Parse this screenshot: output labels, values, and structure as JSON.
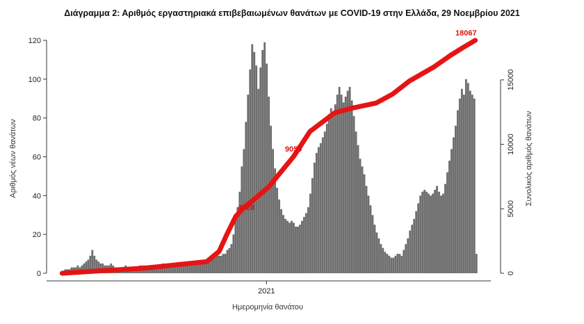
{
  "chart_data": {
    "type": "bar",
    "title": "Διάγραμμα 2: Αριθμός εργαστηριακά επιβεβαιωμένων θανάτων με COVID-19 στην Ελλάδα, 29 Νοεμβρίου 2021",
    "xlabel": "Ημερομηνία θανάτου",
    "ylabel_left": "Αριθμός νέων θανάτων",
    "ylabel_right": "Συνολικός αριθμός θανάτων",
    "x_tick_labels": [
      "2021"
    ],
    "y_left_ticks": [
      0,
      20,
      40,
      60,
      80,
      100,
      120
    ],
    "y_left_lim": [
      0,
      120
    ],
    "y_right_ticks": [
      0,
      5000,
      10000,
      15000
    ],
    "y_right_lim": [
      0,
      18067
    ],
    "grid": false,
    "bar_color": "#6e6e6e",
    "line_color": "#e61414",
    "series": [
      {
        "kind": "bar",
        "axis": "left",
        "values": [
          2,
          2,
          2,
          3,
          3,
          3,
          4,
          3,
          4,
          5,
          6,
          7,
          9,
          12,
          9,
          7,
          6,
          5,
          5,
          4,
          4,
          4,
          5,
          4,
          3,
          3,
          3,
          3,
          3,
          4,
          3,
          3,
          3,
          3,
          3,
          3,
          4,
          4,
          4,
          4,
          4,
          4,
          4,
          4,
          4,
          4,
          4,
          5,
          5,
          5,
          5,
          4,
          5,
          5,
          5,
          5,
          5,
          5,
          5,
          5,
          5,
          6,
          6,
          6,
          6,
          6,
          7,
          6,
          7,
          7,
          7,
          8,
          8,
          9,
          9,
          9,
          10,
          10,
          12,
          13,
          15,
          20,
          28,
          34,
          42,
          55,
          64,
          78,
          92,
          105,
          118,
          114,
          107,
          95,
          106,
          115,
          119,
          108,
          91,
          76,
          64,
          54,
          44,
          38,
          33,
          30,
          28,
          27,
          26,
          27,
          26,
          24,
          24,
          25,
          27,
          29,
          31,
          34,
          41,
          49,
          57,
          62,
          65,
          67,
          70,
          73,
          77,
          82,
          85,
          82,
          87,
          92,
          96,
          92,
          88,
          91,
          94,
          96,
          89,
          81,
          73,
          66,
          59,
          55,
          51,
          45,
          40,
          35,
          30,
          25,
          21,
          18,
          15,
          13,
          11,
          10,
          9,
          8,
          8,
          9,
          10,
          10,
          9,
          12,
          15,
          18,
          22,
          25,
          28,
          32,
          36,
          40,
          42,
          43,
          42,
          41,
          40,
          41,
          43,
          45,
          42,
          40,
          41,
          46,
          52,
          58,
          64,
          70,
          76,
          84,
          90,
          95,
          92,
          100,
          98,
          94,
          92,
          90,
          10
        ],
        "x_start_fraction": 0.04,
        "x_end_fraction": 0.97
      },
      {
        "kind": "line",
        "axis": "right",
        "x": [
          0,
          0.05,
          0.2,
          0.35,
          0.38,
          0.4,
          0.42,
          0.44,
          0.46,
          0.5,
          0.56,
          0.6,
          0.66,
          0.7,
          0.76,
          0.8,
          0.84,
          0.9,
          0.94,
          0.97,
          1.0
        ],
        "y": [
          0,
          100,
          400,
          900,
          1700,
          3100,
          4400,
          5100,
          5600,
          6700,
          9050,
          11000,
          12450,
          12800,
          13200,
          13900,
          14900,
          16000,
          16900,
          17500,
          18067
        ]
      }
    ],
    "annotations": [
      {
        "text": "4528",
        "series_x": 0.445,
        "value": 4528
      },
      {
        "text": "9059",
        "series_x": 0.56,
        "value": 9059
      },
      {
        "text": "18067",
        "series_x": 1.0,
        "value": 18067
      }
    ]
  }
}
